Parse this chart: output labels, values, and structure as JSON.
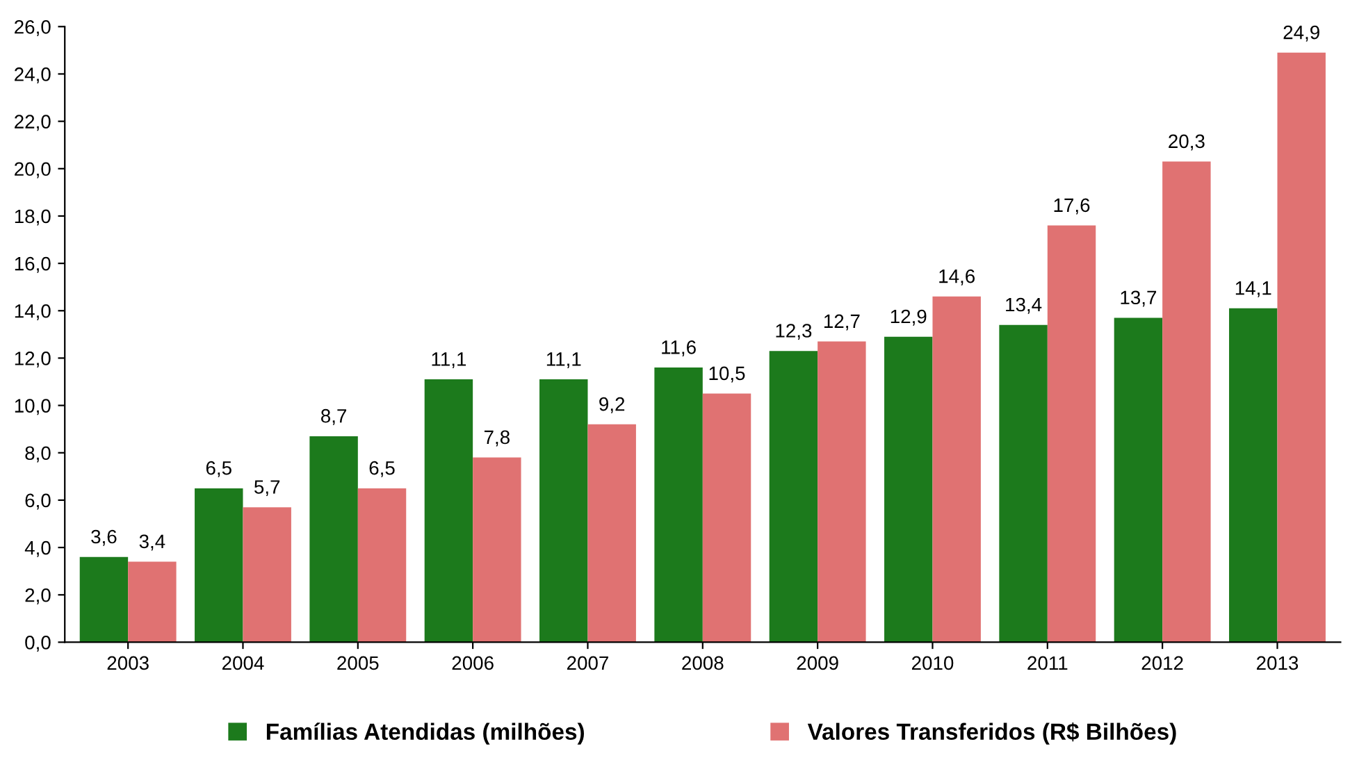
{
  "chart_data": {
    "type": "bar",
    "categories": [
      "2003",
      "2004",
      "2005",
      "2006",
      "2007",
      "2008",
      "2009",
      "2010",
      "2011",
      "2012",
      "2013"
    ],
    "series": [
      {
        "name": "Famílias Atendidas (milhões)",
        "color": "#1c7a1c",
        "values": [
          3.6,
          6.5,
          8.7,
          11.1,
          11.1,
          11.6,
          12.3,
          12.9,
          13.4,
          13.7,
          14.1
        ],
        "value_labels": [
          "3,6",
          "6,5",
          "8,7",
          "11,1",
          "11,1",
          "11,6",
          "12,3",
          "12,9",
          "13,4",
          "13,7",
          "14,1"
        ]
      },
      {
        "name": "Valores Transferidos (R$ Bilhões)",
        "color": "#e07272",
        "values": [
          3.4,
          5.7,
          6.5,
          7.8,
          9.2,
          10.5,
          12.7,
          14.6,
          17.6,
          20.3,
          24.9
        ],
        "value_labels": [
          "3,4",
          "5,7",
          "6,5",
          "7,8",
          "9,2",
          "10,5",
          "12,7",
          "14,6",
          "17,6",
          "20,3",
          "24,9"
        ]
      }
    ],
    "ylim": [
      0,
      26
    ],
    "yticks": [
      {
        "value": 0,
        "label": "0,0"
      },
      {
        "value": 2,
        "label": "2,0"
      },
      {
        "value": 4,
        "label": "4,0"
      },
      {
        "value": 6,
        "label": "6,0"
      },
      {
        "value": 8,
        "label": "8,0"
      },
      {
        "value": 10,
        "label": "10,0"
      },
      {
        "value": 12,
        "label": "12,0"
      },
      {
        "value": 14,
        "label": "14,0"
      },
      {
        "value": 16,
        "label": "16,0"
      },
      {
        "value": 18,
        "label": "18,0"
      },
      {
        "value": 20,
        "label": "20,0"
      },
      {
        "value": 22,
        "label": "22,0"
      },
      {
        "value": 24,
        "label": "24,0"
      },
      {
        "value": 26,
        "label": "26,0"
      }
    ],
    "grid": false,
    "legend": "bottom"
  }
}
